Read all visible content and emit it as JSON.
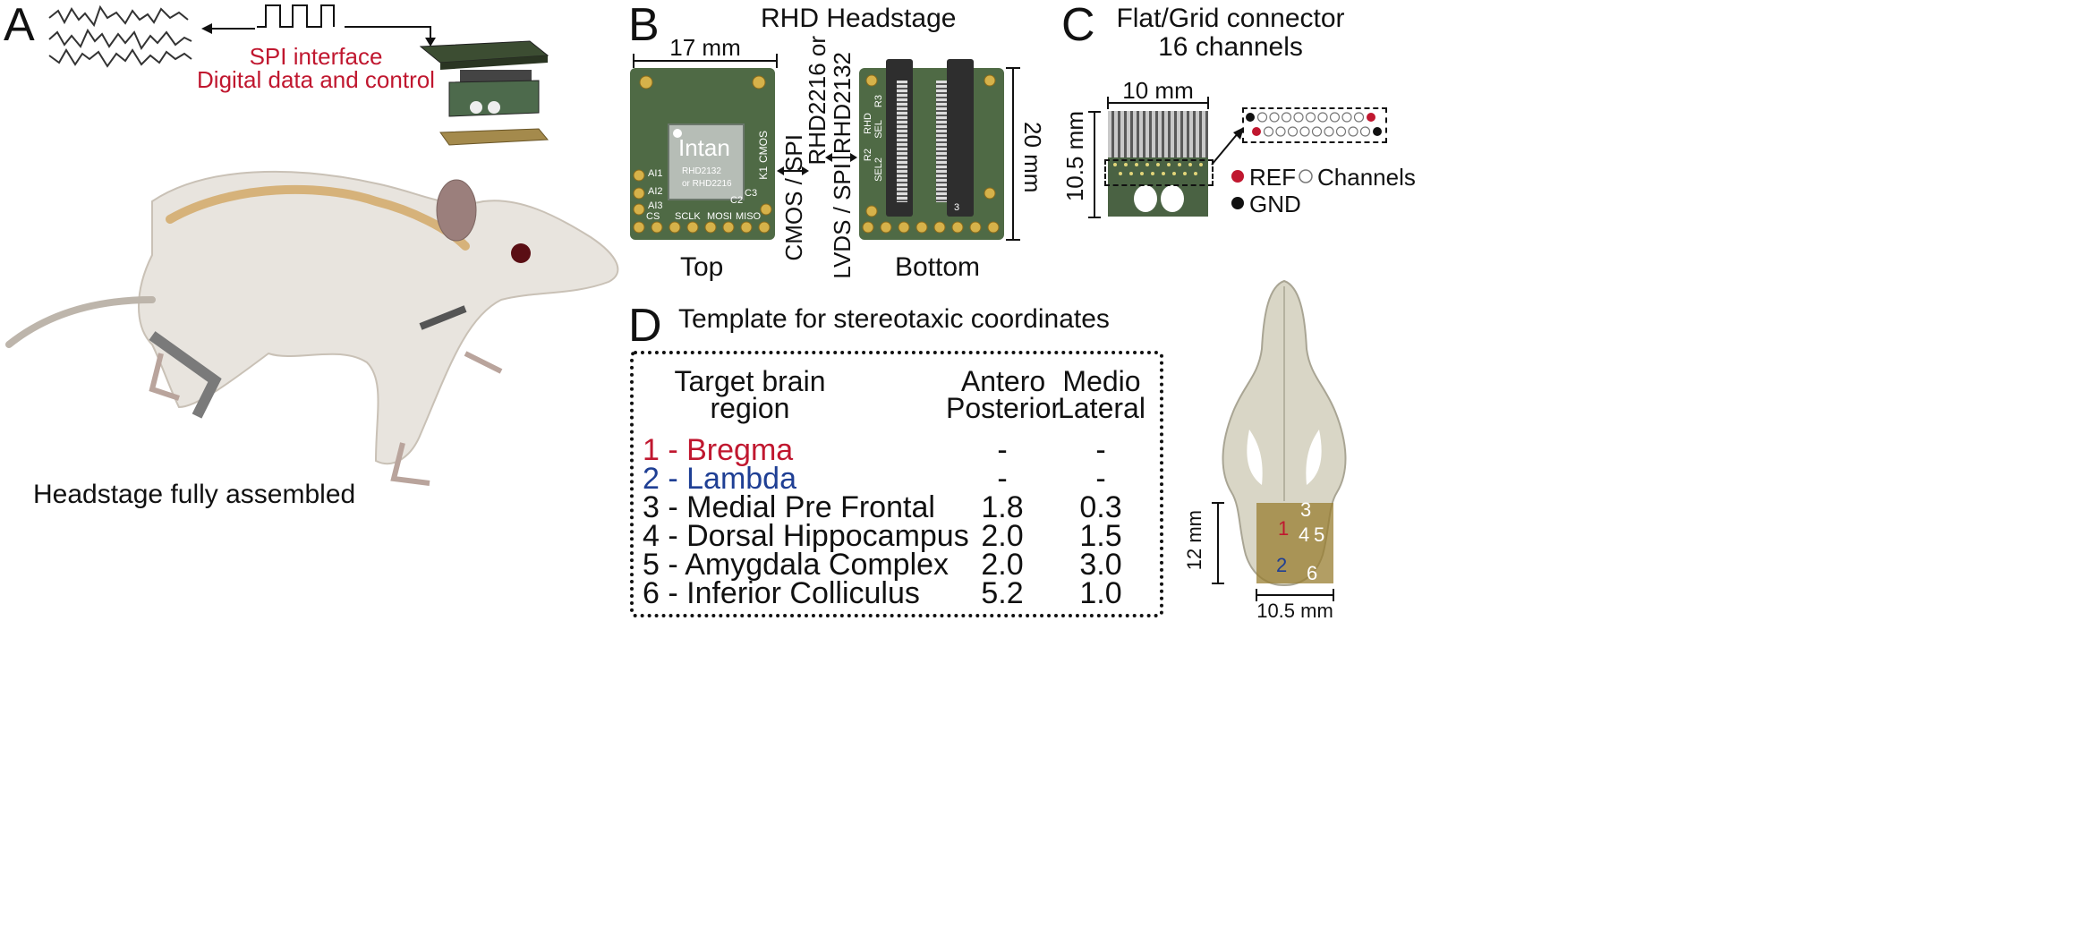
{
  "panel_letters": {
    "a": "A",
    "b": "B",
    "c": "C",
    "d": "D"
  },
  "panel_a": {
    "spi_line1": "SPI interface",
    "spi_line2": "Digital data and control",
    "caption": "Headstage fully assembled"
  },
  "panel_b": {
    "title": "RHD Headstage",
    "width_label": "17 mm",
    "height_label": "20 mm",
    "top_label": "Top",
    "bottom_label": "Bottom",
    "chip_brand": "Intan",
    "chip_model1": "RHD2132",
    "chip_model2": "or RHD2216",
    "side_label_top": "CMOS / SPI",
    "side_label_bottom_1": "RHD2216 or",
    "side_label_bottom_2": "RHD2132",
    "side_label_bottom_3": "LVDS / SPI",
    "pcb_cmos": "CMOS",
    "pcb_k1": "K1",
    "pcb_c3": "C3",
    "pcb_c2": "C2",
    "pcb_ai1": "AI1",
    "pcb_ai2": "AI2",
    "pcb_ai3": "AI3",
    "pcb_cs": "CS",
    "pcb_sclk": "SCLK",
    "pcb_mosi": "MOSI",
    "pcb_miso": "MISO",
    "pcb_rhd": "RHD",
    "pcb_r3": "R3",
    "pcb_sel": "SEL",
    "pcb_r2": "R2",
    "pcb_sel2": "SEL2",
    "pcb_num3": "3"
  },
  "panel_c": {
    "title_line1": "Flat/Grid connector",
    "title_line2": "16 channels",
    "width_label": "10 mm",
    "height_label": "10.5 mm",
    "legend_ref": "REF",
    "legend_gnd": "GND",
    "legend_channels": "Channels",
    "colors": {
      "ref": "#c0172f",
      "gnd": "#111111",
      "channel": "#ffffff"
    }
  },
  "panel_d": {
    "title": "Template for stereotaxic coordinates",
    "headers": {
      "region_line1": "Target brain",
      "region_line2": "region",
      "ap_line1": "Antero",
      "ap_line2": "Posterior",
      "ml_line1": "Medio",
      "ml_line2": "Lateral"
    },
    "rows": [
      {
        "region": "1 - Bregma",
        "ap": "-",
        "ml": "-"
      },
      {
        "region": "2 - Lambda",
        "ap": "-",
        "ml": "-"
      },
      {
        "region": "3 - Medial Pre Frontal",
        "ap": "1.8",
        "ml": "0.3"
      },
      {
        "region": "4 - Dorsal Hippocampus",
        "ap": "2.0",
        "ml": "1.5"
      },
      {
        "region": "5 - Amygdala Complex",
        "ap": "2.0",
        "ml": "3.0"
      },
      {
        "region": "6 - Inferior Colliculus",
        "ap": "5.2",
        "ml": "1.0"
      }
    ],
    "colors": {
      "bregma": "#c0172f",
      "lambda": "#1f3f94"
    }
  },
  "skull": {
    "height_label": "12 mm",
    "width_label": "10.5 mm",
    "markers": [
      "1",
      "2",
      "3",
      "4",
      "5",
      "6"
    ]
  }
}
